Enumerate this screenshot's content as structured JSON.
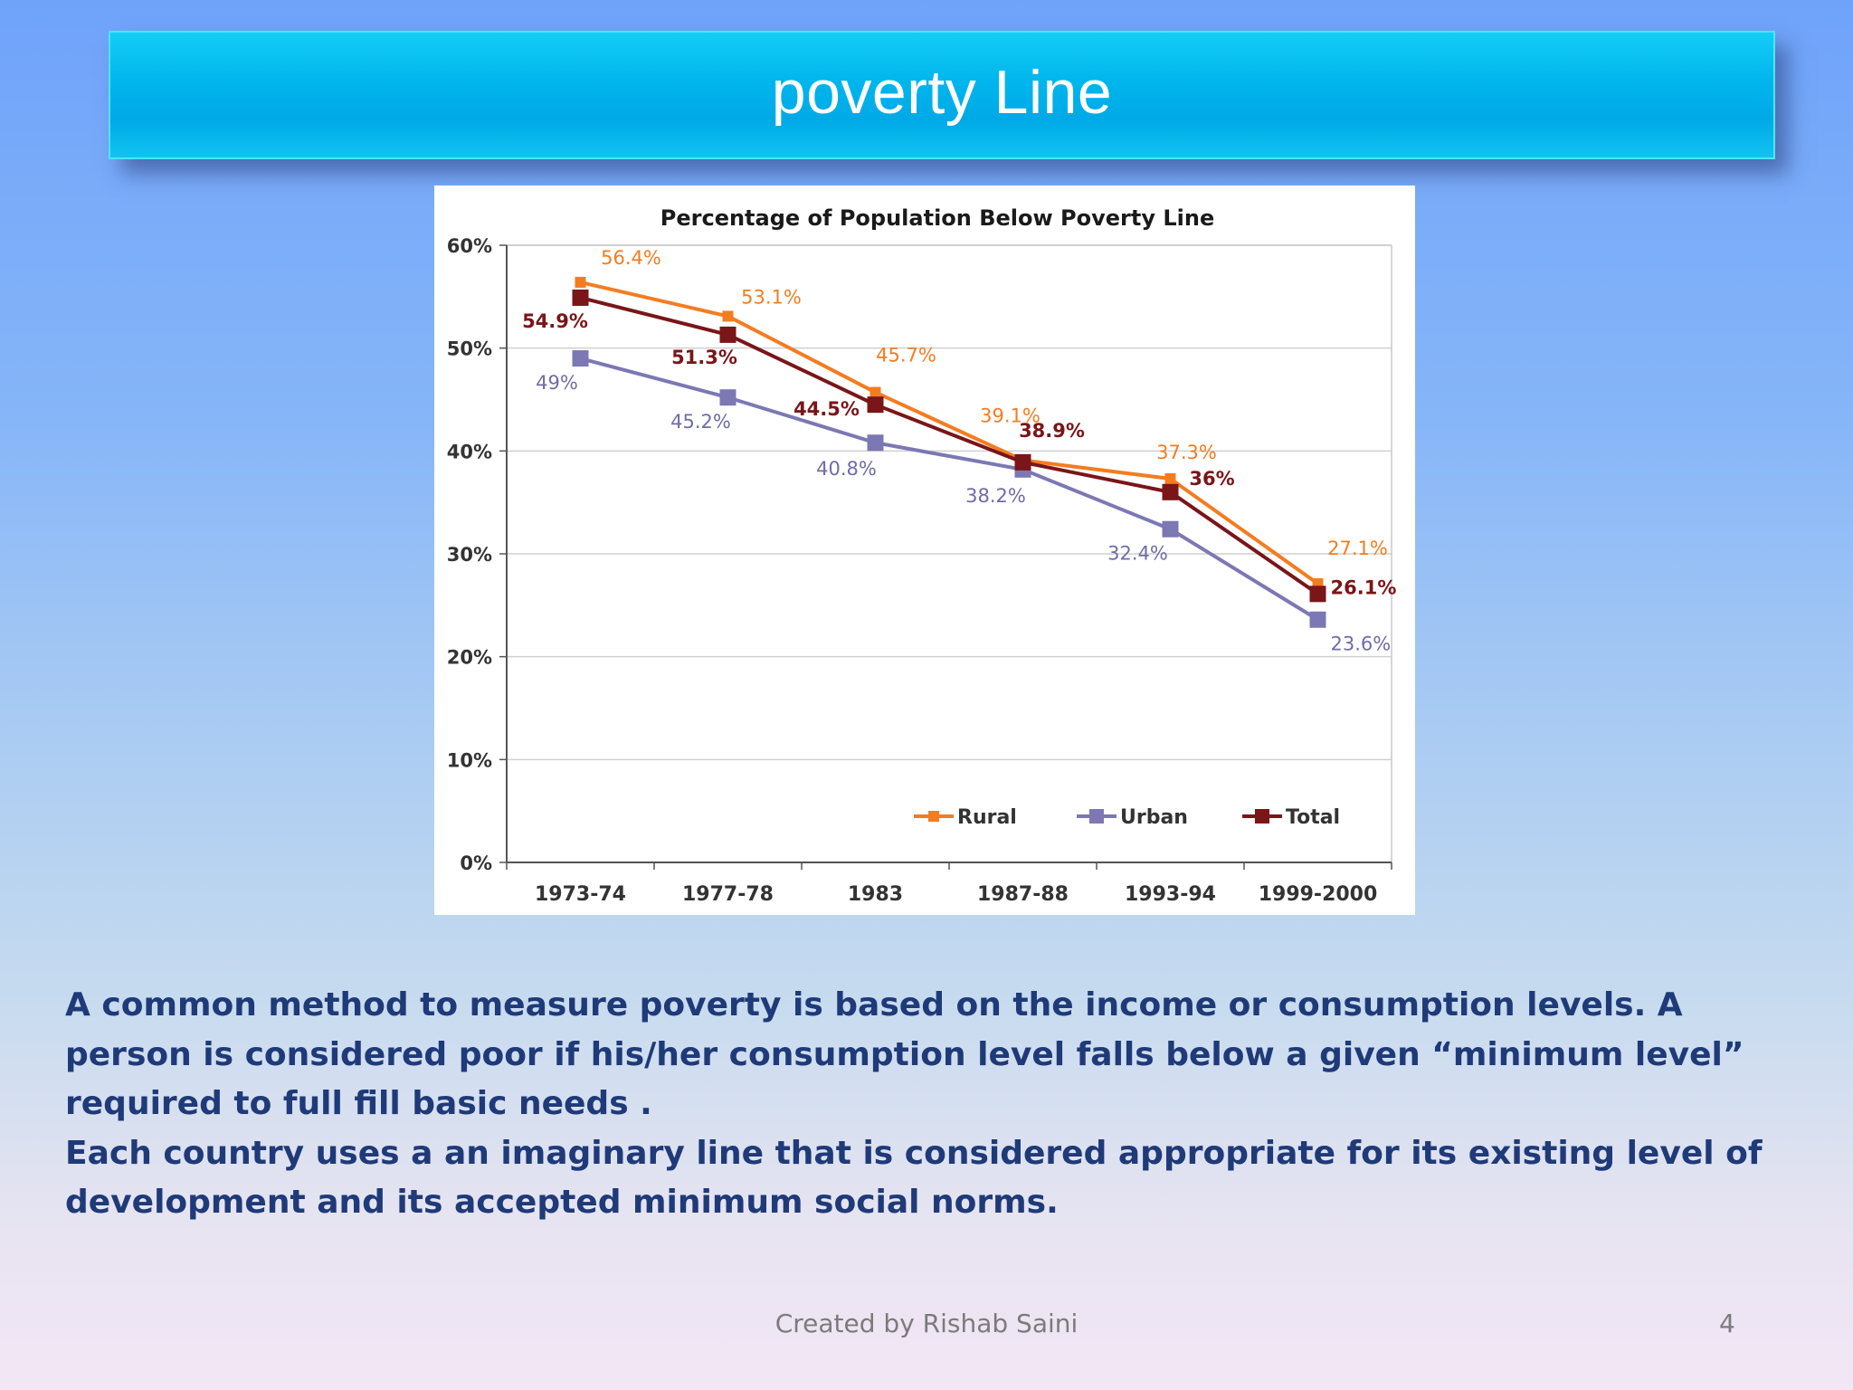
{
  "slide": {
    "title": "poverty Line",
    "paragraphs": [
      "A common method to measure poverty is based on the income or consumption levels. A person is considered poor if his/her consumption level falls below a given “minimum level” required to full fill basic needs .",
      "Each country uses a an imaginary line that is considered appropriate for its existing level of development and its accepted minimum social norms."
    ],
    "footer": "Created by Rishab Saini",
    "page_number": "4"
  },
  "chart_data": {
    "type": "line",
    "title": "Percentage of Population Below Poverty Line",
    "xlabel": "",
    "ylabel": "",
    "categories": [
      "1973-74",
      "1977-78",
      "1983",
      "1987-88",
      "1993-94",
      "1999-2000"
    ],
    "y_ticks": [
      "0%",
      "10%",
      "20%",
      "30%",
      "40%",
      "50%",
      "60%"
    ],
    "ylim": [
      0,
      60
    ],
    "grid": true,
    "legend_position": "bottom-right",
    "series": [
      {
        "name": "Rural",
        "color": "#f47c20",
        "values": [
          56.4,
          53.1,
          45.7,
          39.1,
          37.3,
          27.1
        ],
        "labels": [
          "56.4%",
          "53.1%",
          "45.7%",
          "39.1%",
          "37.3%",
          "27.1%"
        ]
      },
      {
        "name": "Urban",
        "color": "#7b78b4",
        "values": [
          49,
          45.2,
          40.8,
          38.2,
          32.4,
          23.6
        ],
        "labels": [
          "49%",
          "45.2%",
          "40.8%",
          "38.2%",
          "32.4%",
          "23.6%"
        ]
      },
      {
        "name": "Total",
        "color": "#7a1518",
        "values": [
          54.9,
          51.3,
          44.5,
          38.9,
          36,
          26.1
        ],
        "labels": [
          "54.9%",
          "51.3%",
          "44.5%",
          "38.9%",
          "36%",
          "26.1%"
        ]
      }
    ]
  }
}
